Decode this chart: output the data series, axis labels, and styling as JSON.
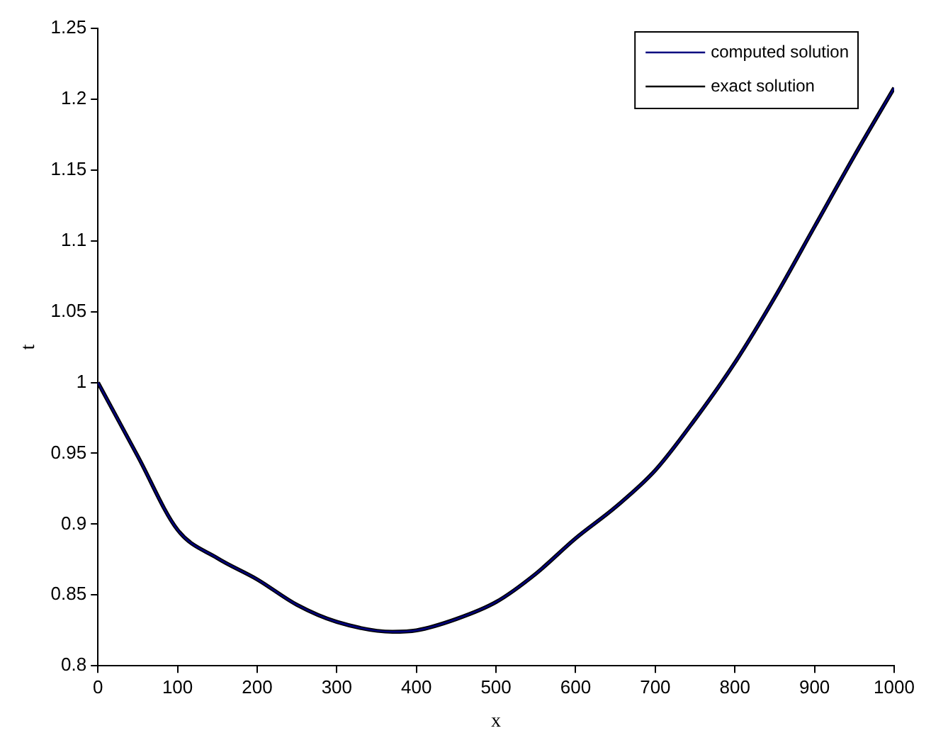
{
  "chart_data": {
    "type": "line",
    "xlabel": "x",
    "ylabel": "t",
    "x": [
      0,
      50,
      100,
      150,
      200,
      250,
      300,
      370,
      400,
      450,
      500,
      550,
      600,
      650,
      700,
      750,
      800,
      850,
      900,
      950,
      1000
    ],
    "series": [
      {
        "name": "computed solution",
        "color": "#00007f",
        "values": [
          1.0,
          0.948,
          0.896,
          0.876,
          0.861,
          0.843,
          0.831,
          0.824,
          0.825,
          0.833,
          0.845,
          0.865,
          0.89,
          0.912,
          0.938,
          0.974,
          1.014,
          1.06,
          1.11,
          1.16,
          1.208
        ]
      },
      {
        "name": "exact solution",
        "color": "#000000",
        "values": [
          1.0,
          0.948,
          0.896,
          0.876,
          0.861,
          0.843,
          0.831,
          0.824,
          0.825,
          0.833,
          0.845,
          0.865,
          0.89,
          0.912,
          0.938,
          0.974,
          1.014,
          1.06,
          1.11,
          1.16,
          1.208
        ]
      }
    ],
    "xlim": [
      0,
      1000
    ],
    "xticks": [
      0,
      100,
      200,
      300,
      400,
      500,
      600,
      700,
      800,
      900,
      1000
    ],
    "ylim": [
      0.8,
      1.25
    ],
    "yticks": [
      0.8,
      0.85,
      0.9,
      0.95,
      1,
      1.05,
      1.1,
      1.15,
      1.2,
      1.25
    ],
    "grid": false,
    "legend": "top right",
    "marker": "none",
    "line_style": "solid"
  }
}
